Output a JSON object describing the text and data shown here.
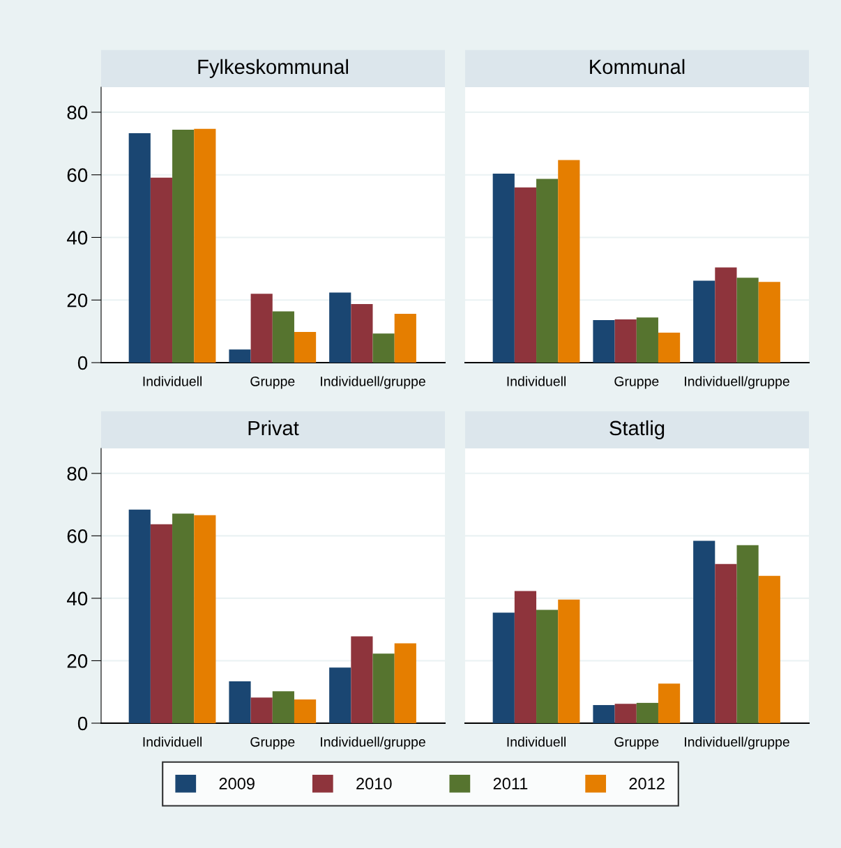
{
  "chart_data": [
    {
      "type": "bar",
      "title": "Fylkeskommunal",
      "categories": [
        "Individuell",
        "Gruppe",
        "Individuell/gruppe"
      ],
      "ylim": [
        0,
        88
      ],
      "yticks": [
        0,
        20,
        40,
        60,
        80
      ],
      "grid": "y",
      "legend": "bottom",
      "series": [
        {
          "name": "2009",
          "color": "#1a4672",
          "values": [
            73.3,
            4.2,
            22.4
          ]
        },
        {
          "name": "2010",
          "color": "#8e343c",
          "values": [
            59.1,
            22,
            18.7
          ]
        },
        {
          "name": "2011",
          "color": "#56742f",
          "values": [
            74.4,
            16.4,
            9.3
          ]
        },
        {
          "name": "2012",
          "color": "#e57e00",
          "values": [
            74.7,
            9.8,
            15.6
          ]
        }
      ]
    },
    {
      "type": "bar",
      "title": "Kommunal",
      "categories": [
        "Individuell",
        "Gruppe",
        "Individuell/gruppe"
      ],
      "ylim": [
        0,
        88
      ],
      "yticks": [
        0,
        20,
        40,
        60,
        80
      ],
      "grid": "y",
      "tick_labels": "x",
      "legend": "bottom",
      "series": [
        {
          "name": "2009",
          "color": "#1a4672",
          "values": [
            60.4,
            13.6,
            26.2
          ]
        },
        {
          "name": "2010",
          "color": "#8e343c",
          "values": [
            56,
            13.8,
            30.4
          ]
        },
        {
          "name": "2011",
          "color": "#56742f",
          "values": [
            58.7,
            14.4,
            27.1
          ]
        },
        {
          "name": "2012",
          "color": "#e57e00",
          "values": [
            64.7,
            9.6,
            25.8
          ]
        }
      ]
    },
    {
      "type": "bar",
      "title": "Privat",
      "categories": [
        "Individuell",
        "Gruppe",
        "Individuell/gruppe"
      ],
      "ylim": [
        0,
        88
      ],
      "yticks": [
        0,
        20,
        40,
        60,
        80
      ],
      "grid": "y",
      "legend": "bottom",
      "series": [
        {
          "name": "2009",
          "color": "#1a4672",
          "values": [
            68.4,
            13.4,
            17.8
          ]
        },
        {
          "name": "2010",
          "color": "#8e343c",
          "values": [
            63.7,
            8.2,
            27.8
          ]
        },
        {
          "name": "2011",
          "color": "#56742f",
          "values": [
            67.1,
            10.2,
            22.3
          ]
        },
        {
          "name": "2012",
          "color": "#e57e00",
          "values": [
            66.6,
            7.6,
            25.6
          ]
        }
      ]
    },
    {
      "type": "bar",
      "title": "Statlig",
      "categories": [
        "Individuell",
        "Gruppe",
        "Individuell/gruppe"
      ],
      "ylim": [
        0,
        88
      ],
      "yticks": [
        0,
        20,
        40,
        60,
        80
      ],
      "grid": "y",
      "tick_labels": "x",
      "legend": "bottom",
      "series": [
        {
          "name": "2009",
          "color": "#1a4672",
          "values": [
            35.4,
            5.8,
            58.4
          ]
        },
        {
          "name": "2010",
          "color": "#8e343c",
          "values": [
            42.3,
            6.2,
            51
          ]
        },
        {
          "name": "2011",
          "color": "#56742f",
          "values": [
            36.3,
            6.5,
            57
          ]
        },
        {
          "name": "2012",
          "color": "#e57e00",
          "values": [
            39.6,
            12.7,
            47.2
          ]
        }
      ]
    }
  ]
}
